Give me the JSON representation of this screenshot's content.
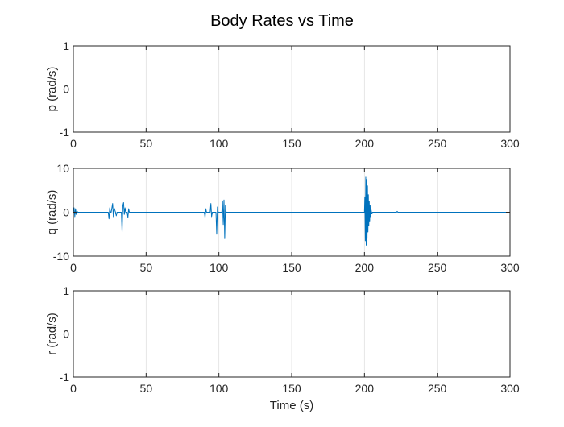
{
  "figure": {
    "title": "Body Rates vs Time"
  },
  "colors": {
    "line": "#0072BD",
    "grid": "#DFDFDF",
    "axis": "#262626"
  },
  "chart_data": [
    {
      "type": "line",
      "ylabel": "p (rad/s)",
      "xlabel": "",
      "xlim": [
        0,
        300
      ],
      "ylim": [
        -1,
        1
      ],
      "xticks": [
        0,
        50,
        100,
        150,
        200,
        250,
        300
      ],
      "yticks": [
        -1,
        0,
        1
      ],
      "grid": "x",
      "series": [
        {
          "x": [
            0,
            300
          ],
          "y": [
            0,
            0
          ]
        }
      ]
    },
    {
      "type": "line",
      "ylabel": "q (rad/s)",
      "xlabel": "",
      "xlim": [
        0,
        300
      ],
      "ylim": [
        -10,
        10
      ],
      "xticks": [
        0,
        50,
        100,
        150,
        200,
        250,
        300
      ],
      "yticks": [
        -10,
        0,
        10
      ],
      "grid": "x",
      "series": [
        {
          "x": [
            0,
            0.5,
            1,
            1.5,
            2,
            2.5,
            3,
            24,
            24.5,
            25,
            25.5,
            26,
            27,
            27.5,
            28,
            29,
            29.5,
            30,
            33,
            33.5,
            34,
            34.5,
            35,
            35.5,
            36,
            37,
            37.5,
            38,
            38.5,
            90,
            90.5,
            91,
            91.5,
            94,
            94.5,
            95,
            95.5,
            98,
            98.5,
            99,
            99.5,
            102,
            102.5,
            103,
            103.5,
            104,
            104.5,
            105,
            200,
            200.3,
            200.6,
            200.9,
            201.2,
            201.5,
            201.8,
            202.1,
            202.4,
            202.7,
            203,
            203.3,
            203.6,
            203.9,
            204.2,
            204.5,
            205,
            205.5,
            222,
            222.5,
            223,
            300
          ],
          "y": [
            0,
            1,
            -1,
            0.8,
            -0.5,
            0.3,
            0,
            0,
            -1.5,
            1,
            0,
            0,
            2,
            -1,
            1,
            0,
            -0.8,
            0,
            0,
            -4.5,
            1.5,
            2.2,
            -0.5,
            1,
            0,
            0,
            -1.2,
            0.8,
            0,
            0,
            -1.2,
            0.8,
            0,
            0,
            2,
            -1,
            0,
            0,
            -5,
            1.2,
            0,
            0,
            2.6,
            -2.8,
            2.8,
            -6,
            1.5,
            0,
            0,
            3.5,
            -6.5,
            8,
            -7.5,
            7.5,
            -6,
            6,
            -4.5,
            4,
            -3,
            2.5,
            -2,
            1.5,
            -1,
            0.7,
            -0.3,
            0,
            0,
            0.2,
            0,
            0
          ]
        }
      ]
    },
    {
      "type": "line",
      "ylabel": "r (rad/s)",
      "xlabel": "Time (s)",
      "xlim": [
        0,
        300
      ],
      "ylim": [
        -1,
        1
      ],
      "xticks": [
        0,
        50,
        100,
        150,
        200,
        250,
        300
      ],
      "yticks": [
        -1,
        0,
        1
      ],
      "grid": "x",
      "series": [
        {
          "x": [
            0,
            300
          ],
          "y": [
            0,
            0
          ]
        }
      ]
    }
  ]
}
